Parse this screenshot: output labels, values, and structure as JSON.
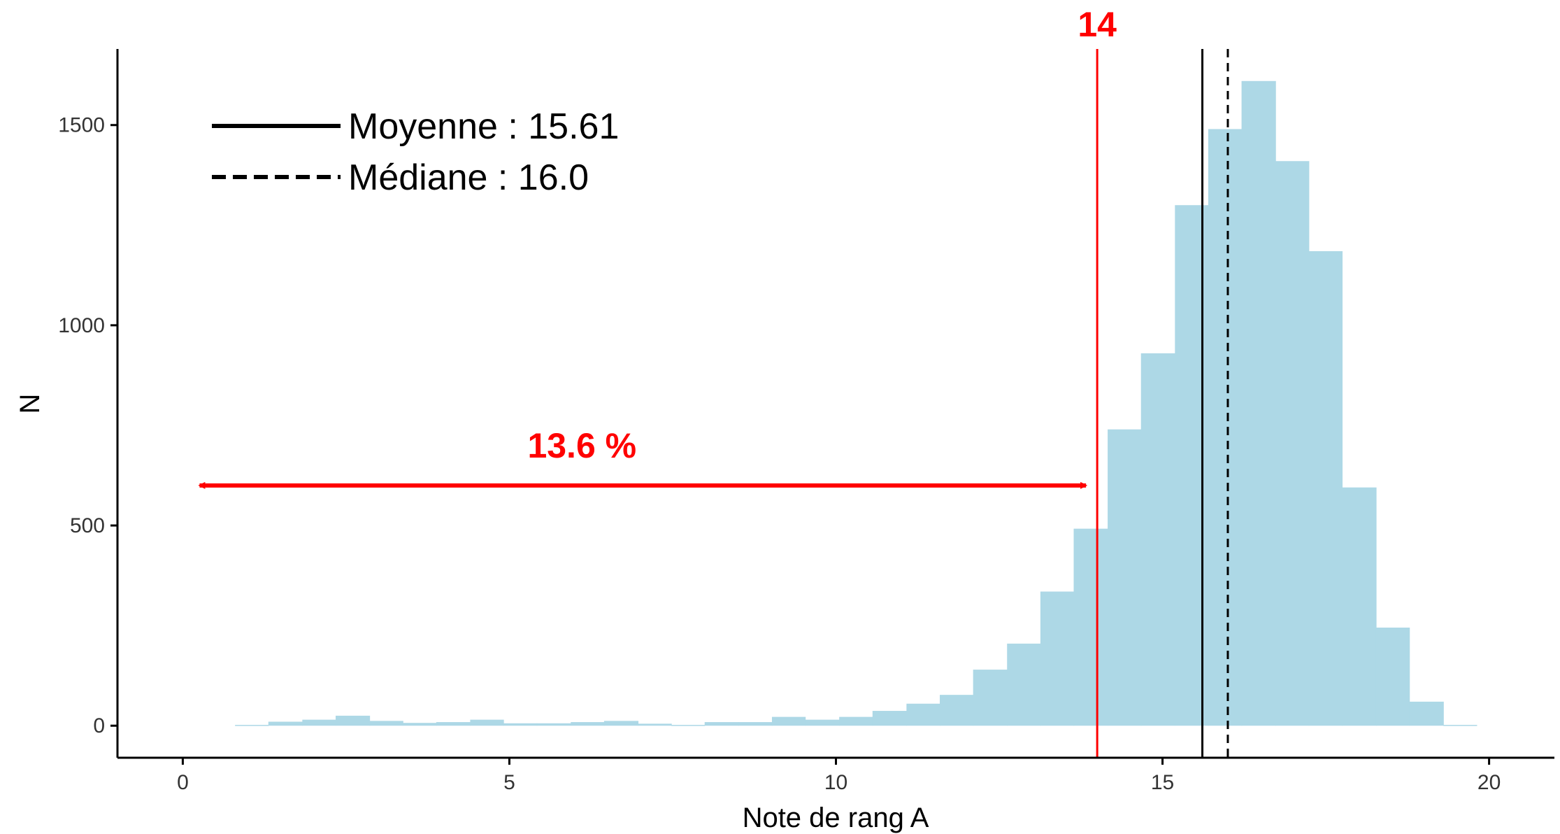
{
  "chart_data": {
    "type": "histogram",
    "xlabel": "Note de rang A",
    "ylabel": "N",
    "xlim": [
      -1,
      21
    ],
    "ylim": [
      -80,
      1690
    ],
    "x_ticks": [
      0,
      5,
      10,
      15,
      20
    ],
    "y_ticks": [
      0,
      500,
      1000,
      1500
    ],
    "grid": false,
    "bin_width": 0.513,
    "bins": [
      {
        "x0": 0.8,
        "x1": 1.31,
        "count": 2
      },
      {
        "x0": 1.31,
        "x1": 1.83,
        "count": 10
      },
      {
        "x0": 1.83,
        "x1": 2.34,
        "count": 15
      },
      {
        "x0": 2.34,
        "x1": 2.86,
        "count": 25
      },
      {
        "x0": 2.86,
        "x1": 3.37,
        "count": 12
      },
      {
        "x0": 3.37,
        "x1": 3.88,
        "count": 7
      },
      {
        "x0": 3.88,
        "x1": 4.4,
        "count": 9
      },
      {
        "x0": 4.4,
        "x1": 4.91,
        "count": 15
      },
      {
        "x0": 4.91,
        "x1": 5.42,
        "count": 6
      },
      {
        "x0": 5.42,
        "x1": 5.94,
        "count": 6
      },
      {
        "x0": 5.94,
        "x1": 6.45,
        "count": 9
      },
      {
        "x0": 6.45,
        "x1": 6.97,
        "count": 12
      },
      {
        "x0": 6.97,
        "x1": 7.48,
        "count": 5
      },
      {
        "x0": 7.48,
        "x1": 7.99,
        "count": 2
      },
      {
        "x0": 7.99,
        "x1": 8.51,
        "count": 9
      },
      {
        "x0": 8.51,
        "x1": 9.02,
        "count": 9
      },
      {
        "x0": 9.02,
        "x1": 9.53,
        "count": 22
      },
      {
        "x0": 9.53,
        "x1": 10.05,
        "count": 15
      },
      {
        "x0": 10.05,
        "x1": 10.56,
        "count": 22
      },
      {
        "x0": 10.56,
        "x1": 11.08,
        "count": 37
      },
      {
        "x0": 11.08,
        "x1": 11.59,
        "count": 55
      },
      {
        "x0": 11.59,
        "x1": 12.1,
        "count": 77
      },
      {
        "x0": 12.1,
        "x1": 12.62,
        "count": 140
      },
      {
        "x0": 12.62,
        "x1": 13.13,
        "count": 205
      },
      {
        "x0": 13.13,
        "x1": 13.64,
        "count": 335
      },
      {
        "x0": 13.64,
        "x1": 14.16,
        "count": 492
      },
      {
        "x0": 14.16,
        "x1": 14.67,
        "count": 740
      },
      {
        "x0": 14.67,
        "x1": 15.19,
        "count": 930
      },
      {
        "x0": 15.19,
        "x1": 15.7,
        "count": 1300
      },
      {
        "x0": 15.7,
        "x1": 16.21,
        "count": 1490
      },
      {
        "x0": 16.21,
        "x1": 16.73,
        "count": 1610
      },
      {
        "x0": 16.73,
        "x1": 17.24,
        "count": 1410
      },
      {
        "x0": 17.24,
        "x1": 17.75,
        "count": 1185
      },
      {
        "x0": 17.75,
        "x1": 18.27,
        "count": 595
      },
      {
        "x0": 18.27,
        "x1": 18.78,
        "count": 245
      },
      {
        "x0": 18.78,
        "x1": 19.3,
        "count": 60
      },
      {
        "x0": 19.3,
        "x1": 19.81,
        "count": 2
      }
    ],
    "bar_color": "#add8e6",
    "reference_lines": [
      {
        "x": 15.61,
        "style": "solid",
        "color": "#000000"
      },
      {
        "x": 16.0,
        "style": "dashed",
        "color": "#000000"
      },
      {
        "x": 14,
        "style": "solid",
        "color": "#ff0000"
      }
    ],
    "legend": {
      "placement": "top-left",
      "entries": [
        {
          "label": "Moyenne : 15.61",
          "style": "solid"
        },
        {
          "label": "Médiane : 16.0",
          "style": "dashed"
        }
      ]
    },
    "annotations": {
      "threshold_label": "14",
      "threshold_value": 14,
      "arrow_x0": 0.15,
      "arrow_x1": 14,
      "arrow_y": 600,
      "arrow_label": "13.6 %",
      "color": "#ff0000"
    }
  }
}
